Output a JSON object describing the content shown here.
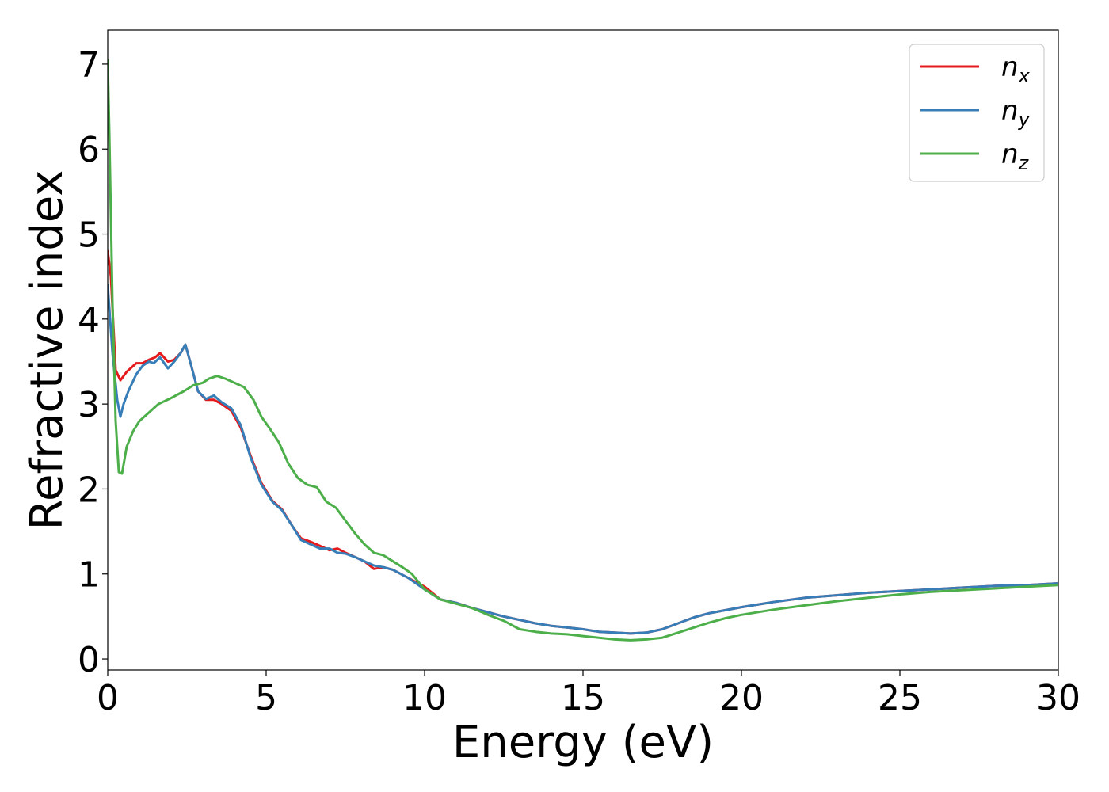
{
  "chart_data": {
    "type": "line",
    "xlabel": "Energy (eV)",
    "ylabel": "Refractive index",
    "xlim": [
      0,
      30
    ],
    "ylim": [
      -0.13,
      7.4
    ],
    "xticks": [
      0,
      5,
      10,
      15,
      20,
      25,
      30
    ],
    "yticks": [
      0,
      1,
      2,
      3,
      4,
      5,
      6,
      7
    ],
    "legend_position": "top-right",
    "grid": false,
    "series": [
      {
        "name": "n",
        "subscript": "x",
        "color": "#e41a1c",
        "points": [
          [
            0,
            4.8
          ],
          [
            0.1,
            4.5
          ],
          [
            0.25,
            3.4
          ],
          [
            0.4,
            3.28
          ],
          [
            0.6,
            3.38
          ],
          [
            0.9,
            3.48
          ],
          [
            1.1,
            3.48
          ],
          [
            1.3,
            3.52
          ],
          [
            1.5,
            3.55
          ],
          [
            1.65,
            3.6
          ],
          [
            1.9,
            3.5
          ],
          [
            2.1,
            3.52
          ],
          [
            2.3,
            3.6
          ],
          [
            2.45,
            3.7
          ],
          [
            2.6,
            3.5
          ],
          [
            2.85,
            3.15
          ],
          [
            3.1,
            3.05
          ],
          [
            3.35,
            3.05
          ],
          [
            3.6,
            3.0
          ],
          [
            3.9,
            2.92
          ],
          [
            4.2,
            2.72
          ],
          [
            4.5,
            2.4
          ],
          [
            4.85,
            2.07
          ],
          [
            5.2,
            1.86
          ],
          [
            5.5,
            1.76
          ],
          [
            5.85,
            1.55
          ],
          [
            6.1,
            1.42
          ],
          [
            6.4,
            1.38
          ],
          [
            6.7,
            1.33
          ],
          [
            7.0,
            1.28
          ],
          [
            7.25,
            1.3
          ],
          [
            7.5,
            1.25
          ],
          [
            7.8,
            1.2
          ],
          [
            8.1,
            1.15
          ],
          [
            8.4,
            1.06
          ],
          [
            8.7,
            1.08
          ],
          [
            9.0,
            1.05
          ],
          [
            9.5,
            0.95
          ],
          [
            10.0,
            0.85
          ],
          [
            10.5,
            0.7
          ],
          [
            11.0,
            0.66
          ],
          [
            11.5,
            0.6
          ],
          [
            12.0,
            0.55
          ],
          [
            12.5,
            0.5
          ],
          [
            13.0,
            0.46
          ],
          [
            13.5,
            0.42
          ],
          [
            14.0,
            0.39
          ],
          [
            14.5,
            0.37
          ],
          [
            15.0,
            0.35
          ],
          [
            15.5,
            0.32
          ],
          [
            16.0,
            0.31
          ],
          [
            16.5,
            0.3
          ],
          [
            17.0,
            0.31
          ],
          [
            17.5,
            0.35
          ],
          [
            18.0,
            0.42
          ],
          [
            18.5,
            0.49
          ],
          [
            19.0,
            0.54
          ],
          [
            20.0,
            0.61
          ],
          [
            21.0,
            0.67
          ],
          [
            22.0,
            0.72
          ],
          [
            23.0,
            0.75
          ],
          [
            24.0,
            0.78
          ],
          [
            25.0,
            0.8
          ],
          [
            26.0,
            0.82
          ],
          [
            27.0,
            0.84
          ],
          [
            28.0,
            0.86
          ],
          [
            29.0,
            0.87
          ],
          [
            30.0,
            0.89
          ]
        ]
      },
      {
        "name": "n",
        "subscript": "y",
        "color": "#377eb8",
        "points": [
          [
            0,
            4.4
          ],
          [
            0.15,
            3.6
          ],
          [
            0.3,
            3.05
          ],
          [
            0.4,
            2.85
          ],
          [
            0.5,
            3.0
          ],
          [
            0.65,
            3.15
          ],
          [
            0.9,
            3.35
          ],
          [
            1.1,
            3.45
          ],
          [
            1.3,
            3.5
          ],
          [
            1.45,
            3.48
          ],
          [
            1.65,
            3.55
          ],
          [
            1.9,
            3.42
          ],
          [
            2.1,
            3.5
          ],
          [
            2.3,
            3.6
          ],
          [
            2.45,
            3.7
          ],
          [
            2.6,
            3.5
          ],
          [
            2.85,
            3.15
          ],
          [
            3.1,
            3.06
          ],
          [
            3.35,
            3.1
          ],
          [
            3.6,
            3.02
          ],
          [
            3.9,
            2.95
          ],
          [
            4.2,
            2.75
          ],
          [
            4.5,
            2.38
          ],
          [
            4.85,
            2.05
          ],
          [
            5.2,
            1.85
          ],
          [
            5.5,
            1.75
          ],
          [
            5.85,
            1.55
          ],
          [
            6.1,
            1.4
          ],
          [
            6.4,
            1.35
          ],
          [
            6.7,
            1.3
          ],
          [
            7.0,
            1.3
          ],
          [
            7.25,
            1.25
          ],
          [
            7.5,
            1.24
          ],
          [
            7.8,
            1.2
          ],
          [
            8.1,
            1.15
          ],
          [
            8.4,
            1.1
          ],
          [
            8.7,
            1.08
          ],
          [
            9.0,
            1.05
          ],
          [
            9.5,
            0.95
          ],
          [
            10.0,
            0.82
          ],
          [
            10.5,
            0.7
          ],
          [
            11.0,
            0.66
          ],
          [
            11.5,
            0.6
          ],
          [
            12.0,
            0.55
          ],
          [
            12.5,
            0.5
          ],
          [
            13.0,
            0.46
          ],
          [
            13.5,
            0.42
          ],
          [
            14.0,
            0.39
          ],
          [
            14.5,
            0.37
          ],
          [
            15.0,
            0.35
          ],
          [
            15.5,
            0.32
          ],
          [
            16.0,
            0.31
          ],
          [
            16.5,
            0.3
          ],
          [
            17.0,
            0.31
          ],
          [
            17.5,
            0.35
          ],
          [
            18.0,
            0.42
          ],
          [
            18.5,
            0.49
          ],
          [
            19.0,
            0.54
          ],
          [
            20.0,
            0.61
          ],
          [
            21.0,
            0.67
          ],
          [
            22.0,
            0.72
          ],
          [
            23.0,
            0.75
          ],
          [
            24.0,
            0.78
          ],
          [
            25.0,
            0.8
          ],
          [
            26.0,
            0.82
          ],
          [
            27.0,
            0.84
          ],
          [
            28.0,
            0.86
          ],
          [
            29.0,
            0.87
          ],
          [
            30.0,
            0.89
          ]
        ]
      },
      {
        "name": "n",
        "subscript": "z",
        "color": "#4daf4a",
        "points": [
          [
            0,
            7.05
          ],
          [
            0.05,
            6.2
          ],
          [
            0.15,
            4.2
          ],
          [
            0.25,
            2.8
          ],
          [
            0.35,
            2.2
          ],
          [
            0.45,
            2.18
          ],
          [
            0.6,
            2.5
          ],
          [
            0.8,
            2.68
          ],
          [
            1.0,
            2.8
          ],
          [
            1.3,
            2.9
          ],
          [
            1.6,
            3.0
          ],
          [
            2.0,
            3.07
          ],
          [
            2.4,
            3.15
          ],
          [
            2.7,
            3.22
          ],
          [
            3.0,
            3.25
          ],
          [
            3.2,
            3.3
          ],
          [
            3.45,
            3.33
          ],
          [
            3.7,
            3.3
          ],
          [
            4.0,
            3.25
          ],
          [
            4.3,
            3.2
          ],
          [
            4.6,
            3.05
          ],
          [
            4.85,
            2.85
          ],
          [
            5.1,
            2.72
          ],
          [
            5.4,
            2.55
          ],
          [
            5.7,
            2.3
          ],
          [
            6.0,
            2.13
          ],
          [
            6.3,
            2.05
          ],
          [
            6.6,
            2.02
          ],
          [
            6.9,
            1.85
          ],
          [
            7.2,
            1.78
          ],
          [
            7.5,
            1.63
          ],
          [
            7.8,
            1.48
          ],
          [
            8.1,
            1.35
          ],
          [
            8.4,
            1.25
          ],
          [
            8.7,
            1.22
          ],
          [
            9.0,
            1.15
          ],
          [
            9.3,
            1.08
          ],
          [
            9.6,
            1.0
          ],
          [
            10.0,
            0.82
          ],
          [
            10.5,
            0.7
          ],
          [
            11.0,
            0.65
          ],
          [
            11.5,
            0.6
          ],
          [
            12.0,
            0.52
          ],
          [
            12.5,
            0.45
          ],
          [
            13.0,
            0.35
          ],
          [
            13.5,
            0.32
          ],
          [
            14.0,
            0.3
          ],
          [
            14.5,
            0.29
          ],
          [
            15.0,
            0.27
          ],
          [
            15.5,
            0.25
          ],
          [
            16.0,
            0.23
          ],
          [
            16.5,
            0.22
          ],
          [
            17.0,
            0.23
          ],
          [
            17.5,
            0.25
          ],
          [
            18.0,
            0.31
          ],
          [
            18.5,
            0.37
          ],
          [
            19.0,
            0.43
          ],
          [
            19.5,
            0.48
          ],
          [
            20.0,
            0.52
          ],
          [
            21.0,
            0.58
          ],
          [
            22.0,
            0.63
          ],
          [
            23.0,
            0.68
          ],
          [
            24.0,
            0.72
          ],
          [
            25.0,
            0.76
          ],
          [
            26.0,
            0.79
          ],
          [
            27.0,
            0.81
          ],
          [
            28.0,
            0.83
          ],
          [
            29.0,
            0.85
          ],
          [
            30.0,
            0.87
          ]
        ]
      }
    ]
  }
}
